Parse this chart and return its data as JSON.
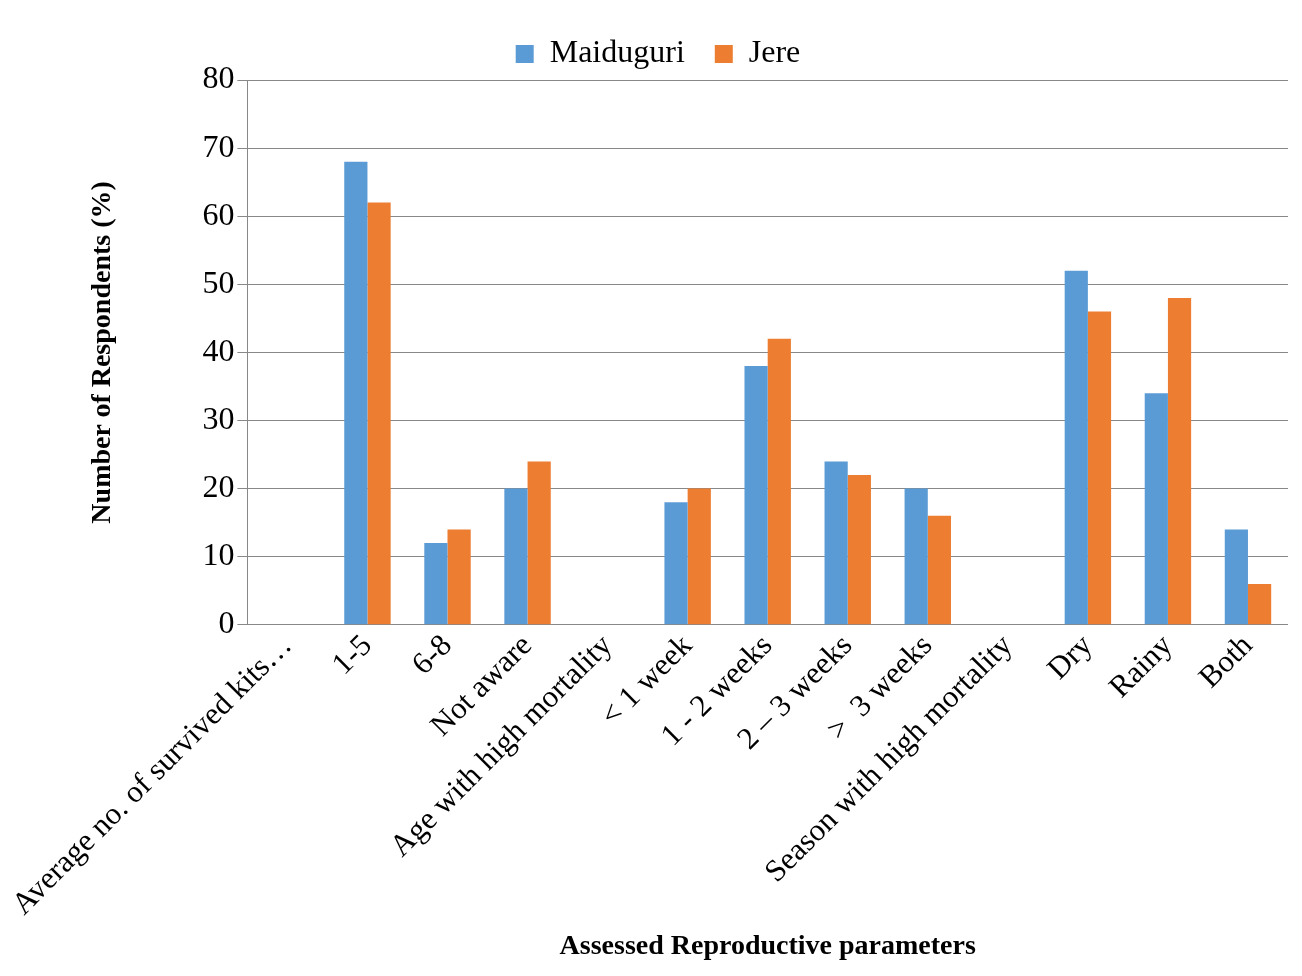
{
  "chart_data": {
    "type": "bar",
    "xlabel": "Assessed Reproductive parameters",
    "ylabel": "Number of Respondents (%)",
    "categories": [
      "Average no. of survived kits…",
      "1-5",
      "6-8",
      "Not aware",
      "Age with high mortality",
      "< 1 week",
      "1 - 2 weeks",
      "2 – 3 weeks",
      ">  3 weeks",
      "Season with high mortality",
      "Dry",
      "Rainy",
      "Both"
    ],
    "series": [
      {
        "name": "Maiduguri",
        "color": "#5b9bd5",
        "values": [
          null,
          68,
          12,
          20,
          null,
          18,
          38,
          24,
          20,
          null,
          52,
          34,
          14
        ]
      },
      {
        "name": "Jere",
        "color": "#ed7d31",
        "values": [
          null,
          62,
          14,
          24,
          null,
          20,
          42,
          22,
          16,
          null,
          46,
          48,
          6
        ]
      }
    ],
    "ylim": [
      0,
      80
    ],
    "yticks": [
      0,
      10,
      20,
      30,
      40,
      50,
      60,
      70,
      80
    ],
    "grid": "y",
    "legend": "top"
  }
}
